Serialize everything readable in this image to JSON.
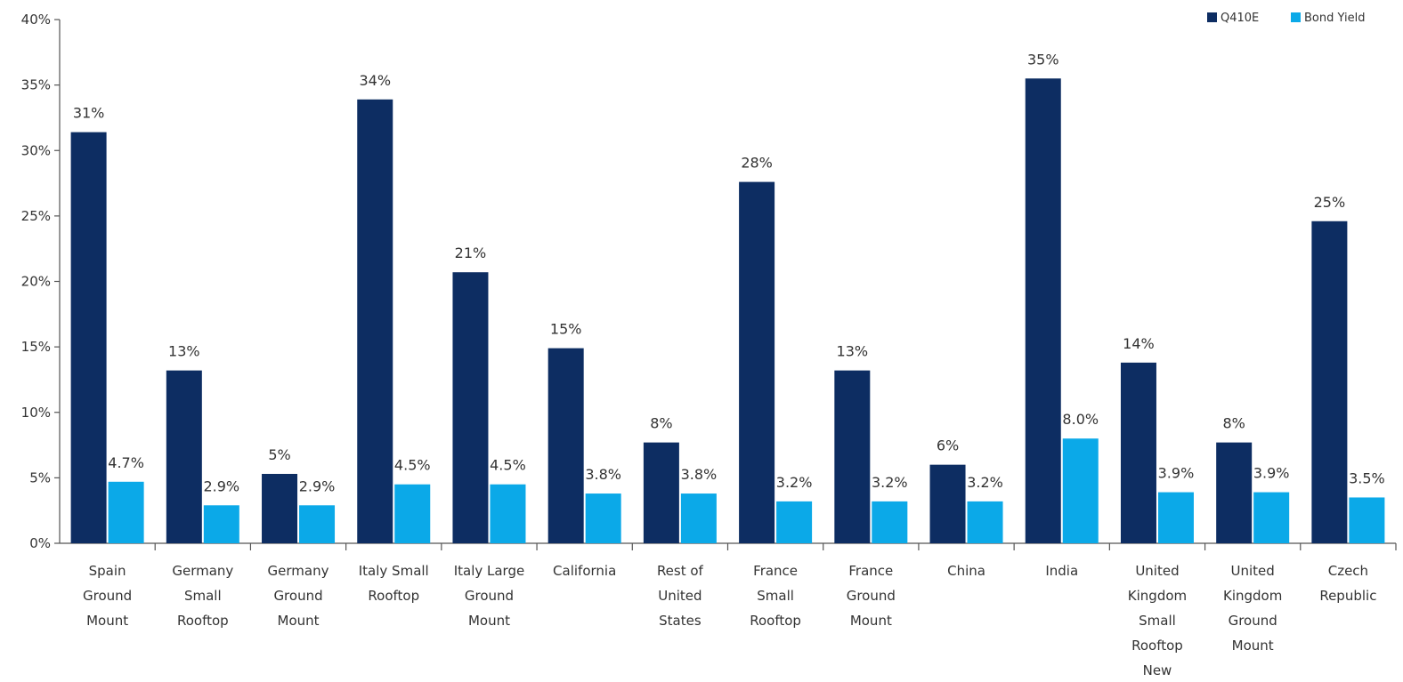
{
  "chart_data": {
    "type": "bar",
    "categories": [
      [
        "Spain",
        "Ground",
        "Mount"
      ],
      [
        "Germany",
        "Small",
        "Rooftop"
      ],
      [
        "Germany",
        "Ground",
        "Mount"
      ],
      [
        "Italy Small",
        "Rooftop"
      ],
      [
        "Italy Large",
        "Ground",
        "Mount"
      ],
      [
        "California"
      ],
      [
        "Rest of",
        "United",
        "States"
      ],
      [
        "France",
        "Small",
        "Rooftop"
      ],
      [
        "France",
        "Ground",
        "Mount"
      ],
      [
        "China"
      ],
      [
        "India"
      ],
      [
        "United",
        "Kingdom",
        "Small",
        "Rooftop",
        "New"
      ],
      [
        "United",
        "Kingdom",
        "Ground",
        "Mount"
      ],
      [
        "Czech",
        "Republic"
      ]
    ],
    "series": [
      {
        "name": "Q410E",
        "color": "#0d2d62",
        "values": [
          31.4,
          13.2,
          5.3,
          33.9,
          20.7,
          14.9,
          7.7,
          27.6,
          13.2,
          6.0,
          35.5,
          13.8,
          7.7,
          24.6
        ],
        "labels": [
          "31%",
          "13%",
          "5%",
          "34%",
          "21%",
          "15%",
          "8%",
          "28%",
          "13%",
          "6%",
          "35%",
          "14%",
          "8%",
          "25%"
        ]
      },
      {
        "name": "Bond Yield",
        "color": "#0ba9e8",
        "values": [
          4.7,
          2.9,
          2.9,
          4.5,
          4.5,
          3.8,
          3.8,
          3.2,
          3.2,
          3.2,
          8.0,
          3.9,
          3.9,
          3.5
        ],
        "labels": [
          "4.7%",
          "2.9%",
          "2.9%",
          "4.5%",
          "4.5%",
          "3.8%",
          "3.8%",
          "3.2%",
          "3.2%",
          "3.2%",
          "8.0%",
          "3.9%",
          "3.9%",
          "3.5%"
        ]
      }
    ],
    "yticks": [
      "0%",
      "5%",
      "10%",
      "15%",
      "20%",
      "25%",
      "30%",
      "35%",
      "40%"
    ],
    "ylim": [
      0,
      40
    ],
    "legend_position": "top-right",
    "grid": false
  }
}
